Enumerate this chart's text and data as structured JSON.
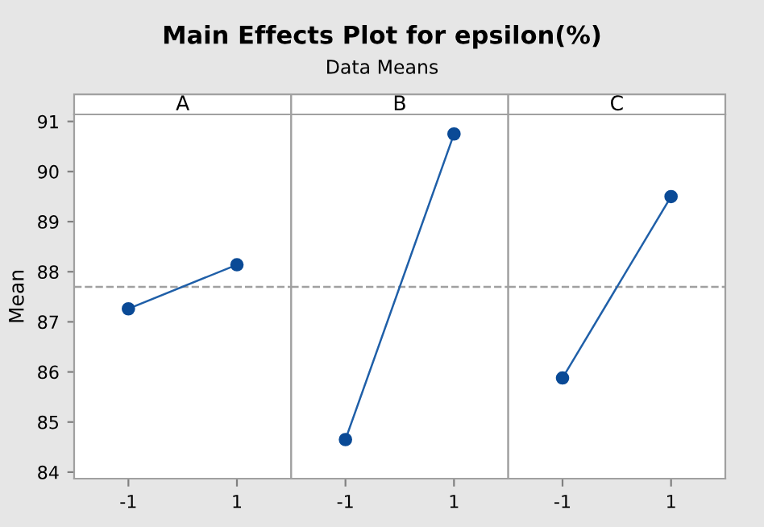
{
  "chart_data": [
    {
      "type": "line",
      "title": "A",
      "ylabel": "Mean",
      "annotations": [
        "Main Effects Plot for epsilon(%)",
        "Data Means"
      ],
      "categories": [
        "-1",
        "1"
      ],
      "series": [
        {
          "color": "#1f5fa8",
          "values": [
            87.26,
            88.14
          ]
        }
      ],
      "ylim": [
        83.87,
        91.14
      ],
      "yticks": [
        84,
        85,
        86,
        87,
        88,
        89,
        90,
        91
      ],
      "ref_lines": [
        {
          "axis": "y",
          "value": 87.7,
          "color": "#a0a0a0",
          "line_style": "dashed"
        }
      ],
      "marker": "circle",
      "line_style": "solid",
      "grid": false,
      "legend": false
    },
    {
      "type": "line",
      "title": "B",
      "categories": [
        "-1",
        "1"
      ],
      "series": [
        {
          "color": "#1f5fa8",
          "values": [
            84.65,
            90.75
          ]
        }
      ],
      "ylim": [
        83.87,
        91.14
      ],
      "tick_labels": "x",
      "ref_lines": [
        {
          "axis": "y",
          "value": 87.7,
          "color": "#a0a0a0",
          "line_style": "dashed"
        }
      ],
      "marker": "circle",
      "line_style": "solid",
      "grid": false,
      "legend": false
    },
    {
      "type": "line",
      "title": "C",
      "categories": [
        "-1",
        "1"
      ],
      "series": [
        {
          "color": "#1f5fa8",
          "values": [
            85.88,
            89.5
          ]
        }
      ],
      "ylim": [
        83.87,
        91.14
      ],
      "tick_labels": "x",
      "ref_lines": [
        {
          "axis": "y",
          "value": 87.7,
          "color": "#a0a0a0",
          "line_style": "dashed"
        }
      ],
      "marker": "circle",
      "line_style": "solid",
      "grid": false,
      "legend": false
    }
  ]
}
